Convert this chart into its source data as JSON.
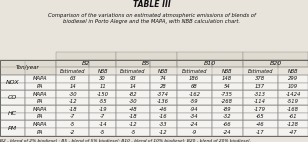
{
  "title": "TABLE III",
  "subtitle": "Comparison of the variations on estimated atmospheric emissions of blends of\nbiodiesel in Porto Alegre and the MAPA, with NBB calculation chart.",
  "row_groups": [
    {
      "group": "NOX",
      "rows": [
        [
          "MAPA",
          "63",
          "30",
          "93",
          "74",
          "186",
          "148",
          "378",
          "299"
        ],
        [
          "PA",
          "14",
          "11",
          "14",
          "28",
          "68",
          "54",
          "137",
          "109"
        ]
      ]
    },
    {
      "group": "CO",
      "rows": [
        [
          "MAPA",
          "-30",
          "-150",
          "-82",
          "-374",
          "-162",
          "-735",
          "-313",
          "-1424"
        ],
        [
          "PA",
          "-12",
          "-55",
          "-30",
          "-136",
          "-59",
          "-268",
          "-114",
          "-519"
        ]
      ]
    },
    {
      "group": "HC",
      "rows": [
        [
          "MAPA",
          "-18",
          "-19",
          "-48",
          "-46",
          "-94",
          "-89",
          "-179",
          "-168"
        ],
        [
          "PA",
          "-7",
          "-7",
          "-18",
          "-16",
          "-34",
          "-32",
          "-65",
          "-61"
        ]
      ]
    },
    {
      "group": "PM",
      "rows": [
        [
          "MAPA",
          "-5",
          "-14",
          "-12",
          "-33",
          "-24",
          "-66",
          "-46",
          "-128"
        ],
        [
          "PA",
          "-2",
          "-5",
          "-5",
          "-12",
          "-9",
          "-24",
          "-17",
          "-47"
        ]
      ]
    }
  ],
  "footnote": "B2 - blend of 2% biodiesel ; B5 - blend of 5% biodiesel; B10 - blend of 10% biodiesel; B20 - blend of 20% biodiesel.",
  "bg_color": "#e8e4dc",
  "cell_bg": "#f5f3ef",
  "header_bg": "#e0dbd0",
  "border_color": "#888888",
  "text_color": "#111111"
}
